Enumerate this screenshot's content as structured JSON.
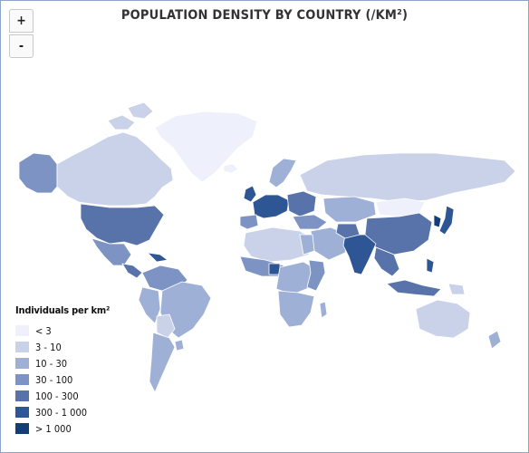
{
  "title": "POPULATION DENSITY BY COUNTRY (/KM²)",
  "zoom": {
    "in_label": "+",
    "out_label": "-"
  },
  "legend": {
    "title": "Individuals per km²",
    "items": [
      {
        "label": "< 3",
        "color": "#eef0fb"
      },
      {
        "label": "3 - 10",
        "color": "#c9d2e8"
      },
      {
        "label": "10 - 30",
        "color": "#9fb0d6"
      },
      {
        "label": "30 - 100",
        "color": "#7c93c4"
      },
      {
        "label": "100 - 300",
        "color": "#5873aa"
      },
      {
        "label": "300 - 1 000",
        "color": "#2e5694"
      },
      {
        "label": "> 1 000",
        "color": "#133e78"
      }
    ]
  },
  "colors": {
    "frame_border": "#8aa6c8",
    "country_border": "#ffffff"
  }
}
